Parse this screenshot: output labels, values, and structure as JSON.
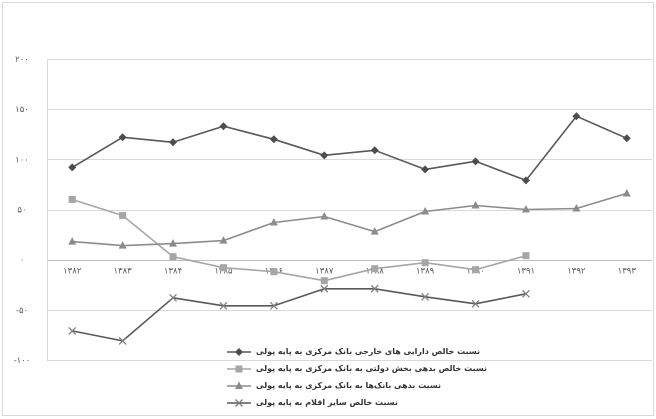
{
  "chart_data": {
    "type": "line",
    "categories": [
      "۱۳۸۲",
      "۱۳۸۳",
      "۱۳۸۴",
      "۱۳۸۵",
      "۱۳۸۶",
      "۱۳۸۷",
      "۱۳۸۸",
      "۱۳۸۹",
      "۱۳۹۰",
      "۱۳۹۱",
      "۱۳۹۲",
      "۱۳۹۳"
    ],
    "y_ticks": [
      200,
      150,
      100,
      50,
      0,
      -50,
      -100
    ],
    "y_tick_labels": [
      "۲۰۰",
      "۱۵۰",
      "۱۰۰",
      "۵۰",
      "۰",
      "-۵۰",
      "-۱۰۰"
    ],
    "ylim": [
      -100,
      200
    ],
    "grid": true,
    "legend": "bottom",
    "series": [
      {
        "name": "نسبت خالص دارایی های خارجی بانک مرکزی به پایه پولی",
        "marker": "diamond",
        "color": "#595959",
        "marker_color": "#4d4d4d",
        "values": [
          92,
          122,
          117,
          133,
          120,
          104,
          109,
          90,
          98,
          79,
          143,
          121
        ]
      },
      {
        "name": "نسبت خالص بدهی بخش دولتی به بانک مرکزی به پایه پولی",
        "marker": "square",
        "color": "#a6a6a6",
        "marker_color": "#a6a6a6",
        "values": [
          60,
          44,
          3,
          -8,
          -12,
          -21,
          -9,
          -3,
          -10,
          4,
          null,
          null
        ]
      },
      {
        "name": "نسبت بدهی بانک‌ها به بانک مرکزی به پایه پولی",
        "marker": "triangle",
        "color": "#8c8c8c",
        "marker_color": "#8c8c8c",
        "values": [
          18,
          14,
          16,
          19,
          37,
          43,
          28,
          48,
          54,
          50,
          51,
          66
        ]
      },
      {
        "name": "نسبت خالص سایر اقلام به پایه پولی",
        "marker": "x",
        "color": "#595959",
        "marker_color": "#808080",
        "values": [
          -71,
          -81,
          -38,
          -46,
          -46,
          -29,
          -29,
          -37,
          -44,
          -34,
          null,
          null
        ]
      }
    ]
  }
}
